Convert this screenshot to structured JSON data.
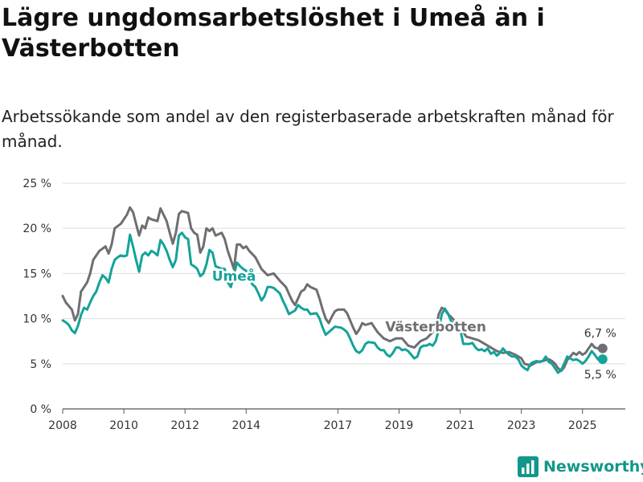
{
  "header": {
    "title": "Lägre ungdomsarbetslöshet i Umeå än i Västerbotten",
    "subtitle": "Arbetssökande som andel av den registerbaserade arbetskraften månad för månad."
  },
  "brand": {
    "name": "Newsworthy",
    "color": "#13978a"
  },
  "chart_data": {
    "type": "line",
    "title": "Lägre ungdomsarbetslöshet i Umeå än i Västerbotten",
    "subtitle": "Arbetssökande som andel av den registerbaserade arbetskraften månad för månad.",
    "xlabel": "",
    "ylabel": "",
    "xlim": [
      2008,
      2026.4
    ],
    "ylim": [
      0,
      25
    ],
    "grid": true,
    "yticks": [
      0,
      5,
      10,
      15,
      20,
      25
    ],
    "ytick_labels": [
      "0 %",
      "5 %",
      "10 %",
      "15 %",
      "20 %",
      "25 %"
    ],
    "xticks": [
      2008,
      2010,
      2012,
      2014,
      2017,
      2019,
      2021,
      2023,
      2025
    ],
    "xtick_labels": [
      "2008",
      "2010",
      "2012",
      "2014",
      "2017",
      "2019",
      "2021",
      "2023",
      "2025"
    ],
    "series": [
      {
        "name": "Västerbotten",
        "label": "Västerbotten",
        "color": "#6e6e73",
        "end_label": "6,7 %",
        "points": [
          [
            2008.0,
            12.5
          ],
          [
            2008.1,
            11.8
          ],
          [
            2008.3,
            11.0
          ],
          [
            2008.4,
            9.8
          ],
          [
            2008.5,
            10.5
          ],
          [
            2008.6,
            13.0
          ],
          [
            2008.8,
            14.0
          ],
          [
            2008.9,
            15.0
          ],
          [
            2009.0,
            16.5
          ],
          [
            2009.2,
            17.5
          ],
          [
            2009.4,
            18.0
          ],
          [
            2009.5,
            17.2
          ],
          [
            2009.6,
            18.2
          ],
          [
            2009.7,
            20.0
          ],
          [
            2009.9,
            20.5
          ],
          [
            2010.0,
            21.0
          ],
          [
            2010.1,
            21.5
          ],
          [
            2010.2,
            22.3
          ],
          [
            2010.3,
            21.8
          ],
          [
            2010.4,
            20.5
          ],
          [
            2010.5,
            19.2
          ],
          [
            2010.6,
            20.3
          ],
          [
            2010.7,
            20.0
          ],
          [
            2010.8,
            21.2
          ],
          [
            2010.9,
            21.0
          ],
          [
            2011.1,
            20.8
          ],
          [
            2011.2,
            22.2
          ],
          [
            2011.3,
            21.5
          ],
          [
            2011.4,
            20.8
          ],
          [
            2011.5,
            19.5
          ],
          [
            2011.6,
            18.3
          ],
          [
            2011.7,
            19.5
          ],
          [
            2011.8,
            21.6
          ],
          [
            2011.9,
            21.9
          ],
          [
            2012.1,
            21.7
          ],
          [
            2012.2,
            20.0
          ],
          [
            2012.3,
            19.5
          ],
          [
            2012.4,
            19.3
          ],
          [
            2012.5,
            17.3
          ],
          [
            2012.6,
            18.0
          ],
          [
            2012.7,
            20.0
          ],
          [
            2012.8,
            19.7
          ],
          [
            2012.9,
            20.0
          ],
          [
            2013.0,
            19.2
          ],
          [
            2013.2,
            19.5
          ],
          [
            2013.3,
            18.8
          ],
          [
            2013.4,
            17.5
          ],
          [
            2013.5,
            16.5
          ],
          [
            2013.6,
            15.5
          ],
          [
            2013.7,
            18.2
          ],
          [
            2013.8,
            18.2
          ],
          [
            2013.9,
            17.8
          ],
          [
            2014.0,
            18.0
          ],
          [
            2014.1,
            17.5
          ],
          [
            2014.3,
            16.8
          ],
          [
            2014.5,
            15.5
          ],
          [
            2014.7,
            14.8
          ],
          [
            2014.9,
            15.0
          ],
          [
            2015.1,
            14.2
          ],
          [
            2015.3,
            13.5
          ],
          [
            2015.5,
            12.0
          ],
          [
            2015.6,
            11.5
          ],
          [
            2015.8,
            13.0
          ],
          [
            2015.9,
            13.2
          ],
          [
            2016.0,
            13.8
          ],
          [
            2016.1,
            13.5
          ],
          [
            2016.3,
            13.2
          ],
          [
            2016.4,
            12.2
          ],
          [
            2016.5,
            11.0
          ],
          [
            2016.6,
            10.0
          ],
          [
            2016.7,
            9.5
          ],
          [
            2016.8,
            10.2
          ],
          [
            2016.9,
            10.8
          ],
          [
            2017.0,
            11.0
          ],
          [
            2017.2,
            11.0
          ],
          [
            2017.3,
            10.6
          ],
          [
            2017.4,
            9.8
          ],
          [
            2017.5,
            9.0
          ],
          [
            2017.6,
            8.3
          ],
          [
            2017.7,
            8.8
          ],
          [
            2017.8,
            9.5
          ],
          [
            2017.9,
            9.3
          ],
          [
            2018.1,
            9.5
          ],
          [
            2018.2,
            9.0
          ],
          [
            2018.3,
            8.5
          ],
          [
            2018.5,
            7.8
          ],
          [
            2018.7,
            7.5
          ],
          [
            2018.9,
            7.8
          ],
          [
            2019.1,
            7.8
          ],
          [
            2019.3,
            7.0
          ],
          [
            2019.5,
            6.8
          ],
          [
            2019.7,
            7.5
          ],
          [
            2019.9,
            7.8
          ],
          [
            2020.1,
            8.5
          ],
          [
            2020.2,
            8.8
          ],
          [
            2020.3,
            10.5
          ],
          [
            2020.4,
            11.2
          ],
          [
            2020.5,
            11.0
          ],
          [
            2020.6,
            10.5
          ],
          [
            2020.7,
            10.2
          ],
          [
            2020.8,
            9.8
          ],
          [
            2020.9,
            9.5
          ],
          [
            2021.0,
            9.0
          ],
          [
            2021.2,
            8.0
          ],
          [
            2021.4,
            7.8
          ],
          [
            2021.6,
            7.6
          ],
          [
            2021.8,
            7.2
          ],
          [
            2022.0,
            6.8
          ],
          [
            2022.2,
            6.4
          ],
          [
            2022.4,
            6.2
          ],
          [
            2022.6,
            6.3
          ],
          [
            2022.8,
            6.0
          ],
          [
            2023.0,
            5.6
          ],
          [
            2023.1,
            5.0
          ],
          [
            2023.3,
            4.8
          ],
          [
            2023.5,
            5.2
          ],
          [
            2023.7,
            5.3
          ],
          [
            2023.9,
            5.5
          ],
          [
            2024.0,
            5.3
          ],
          [
            2024.1,
            5.0
          ],
          [
            2024.2,
            4.5
          ],
          [
            2024.3,
            4.2
          ],
          [
            2024.4,
            4.6
          ],
          [
            2024.5,
            5.4
          ],
          [
            2024.6,
            5.8
          ],
          [
            2024.7,
            6.2
          ],
          [
            2024.8,
            6.0
          ],
          [
            2024.9,
            6.3
          ],
          [
            2025.0,
            6.0
          ],
          [
            2025.1,
            6.2
          ],
          [
            2025.2,
            6.7
          ],
          [
            2025.3,
            7.2
          ],
          [
            2025.4,
            6.8
          ],
          [
            2025.5,
            6.7
          ]
        ]
      },
      {
        "name": "Umeå",
        "label": "Umeå",
        "color": "#13a399",
        "end_label": "5,5 %",
        "points": [
          [
            2008.0,
            9.8
          ],
          [
            2008.1,
            9.6
          ],
          [
            2008.2,
            9.3
          ],
          [
            2008.3,
            8.7
          ],
          [
            2008.4,
            8.4
          ],
          [
            2008.5,
            9.2
          ],
          [
            2008.6,
            10.4
          ],
          [
            2008.7,
            11.2
          ],
          [
            2008.8,
            11.0
          ],
          [
            2008.9,
            11.8
          ],
          [
            2009.0,
            12.5
          ],
          [
            2009.1,
            13.0
          ],
          [
            2009.2,
            14.0
          ],
          [
            2009.3,
            14.8
          ],
          [
            2009.4,
            14.5
          ],
          [
            2009.5,
            14.0
          ],
          [
            2009.6,
            15.5
          ],
          [
            2009.7,
            16.5
          ],
          [
            2009.8,
            16.8
          ],
          [
            2009.9,
            17.0
          ],
          [
            2010.0,
            16.9
          ],
          [
            2010.1,
            17.0
          ],
          [
            2010.2,
            19.3
          ],
          [
            2010.3,
            18.0
          ],
          [
            2010.4,
            16.5
          ],
          [
            2010.5,
            15.2
          ],
          [
            2010.6,
            17.0
          ],
          [
            2010.7,
            17.3
          ],
          [
            2010.8,
            17.0
          ],
          [
            2010.9,
            17.5
          ],
          [
            2011.0,
            17.3
          ],
          [
            2011.1,
            17.0
          ],
          [
            2011.2,
            18.7
          ],
          [
            2011.3,
            18.2
          ],
          [
            2011.4,
            17.5
          ],
          [
            2011.5,
            16.5
          ],
          [
            2011.6,
            15.7
          ],
          [
            2011.7,
            16.5
          ],
          [
            2011.8,
            19.2
          ],
          [
            2011.9,
            19.5
          ],
          [
            2012.0,
            19.0
          ],
          [
            2012.1,
            18.8
          ],
          [
            2012.2,
            16.0
          ],
          [
            2012.3,
            15.8
          ],
          [
            2012.4,
            15.5
          ],
          [
            2012.5,
            14.7
          ],
          [
            2012.6,
            15.0
          ],
          [
            2012.7,
            16.0
          ],
          [
            2012.8,
            17.6
          ],
          [
            2012.9,
            17.3
          ],
          [
            2013.0,
            15.8
          ],
          [
            2013.2,
            15.5
          ],
          [
            2013.3,
            15.5
          ],
          [
            2013.4,
            14.0
          ],
          [
            2013.5,
            13.5
          ],
          [
            2013.6,
            14.8
          ],
          [
            2013.7,
            16.2
          ],
          [
            2013.8,
            15.8
          ],
          [
            2013.9,
            15.5
          ],
          [
            2014.0,
            15.3
          ],
          [
            2014.2,
            13.8
          ],
          [
            2014.3,
            13.5
          ],
          [
            2014.4,
            12.8
          ],
          [
            2014.5,
            12.0
          ],
          [
            2014.6,
            12.5
          ],
          [
            2014.7,
            13.5
          ],
          [
            2014.8,
            13.5
          ],
          [
            2014.9,
            13.4
          ],
          [
            2015.1,
            12.8
          ],
          [
            2015.2,
            12.0
          ],
          [
            2015.3,
            11.3
          ],
          [
            2015.4,
            10.5
          ],
          [
            2015.6,
            10.9
          ],
          [
            2015.7,
            11.5
          ],
          [
            2015.8,
            11.2
          ],
          [
            2015.9,
            11.0
          ],
          [
            2016.0,
            11.0
          ],
          [
            2016.1,
            10.5
          ],
          [
            2016.3,
            10.6
          ],
          [
            2016.4,
            10.0
          ],
          [
            2016.5,
            9.0
          ],
          [
            2016.6,
            8.2
          ],
          [
            2016.7,
            8.5
          ],
          [
            2016.8,
            8.8
          ],
          [
            2016.9,
            9.1
          ],
          [
            2017.1,
            9.0
          ],
          [
            2017.2,
            8.8
          ],
          [
            2017.3,
            8.5
          ],
          [
            2017.4,
            7.8
          ],
          [
            2017.5,
            7.0
          ],
          [
            2017.6,
            6.4
          ],
          [
            2017.7,
            6.2
          ],
          [
            2017.8,
            6.5
          ],
          [
            2017.9,
            7.2
          ],
          [
            2018.0,
            7.4
          ],
          [
            2018.2,
            7.3
          ],
          [
            2018.3,
            6.8
          ],
          [
            2018.4,
            6.5
          ],
          [
            2018.5,
            6.5
          ],
          [
            2018.6,
            6.0
          ],
          [
            2018.7,
            5.8
          ],
          [
            2018.8,
            6.2
          ],
          [
            2018.9,
            6.8
          ],
          [
            2019.0,
            6.8
          ],
          [
            2019.1,
            6.5
          ],
          [
            2019.2,
            6.6
          ],
          [
            2019.3,
            6.4
          ],
          [
            2019.4,
            6.0
          ],
          [
            2019.5,
            5.6
          ],
          [
            2019.6,
            5.8
          ],
          [
            2019.7,
            6.8
          ],
          [
            2019.8,
            7.0
          ],
          [
            2019.9,
            7.0
          ],
          [
            2020.0,
            7.2
          ],
          [
            2020.1,
            7.0
          ],
          [
            2020.2,
            7.5
          ],
          [
            2020.3,
            8.8
          ],
          [
            2020.4,
            10.5
          ],
          [
            2020.5,
            11.1
          ],
          [
            2020.6,
            10.6
          ],
          [
            2020.7,
            9.7
          ],
          [
            2020.8,
            9.5
          ],
          [
            2020.9,
            9.3
          ],
          [
            2021.0,
            8.8
          ],
          [
            2021.1,
            7.2
          ],
          [
            2021.3,
            7.2
          ],
          [
            2021.4,
            7.3
          ],
          [
            2021.5,
            6.8
          ],
          [
            2021.6,
            6.5
          ],
          [
            2021.7,
            6.6
          ],
          [
            2021.8,
            6.4
          ],
          [
            2021.9,
            6.7
          ],
          [
            2022.0,
            6.1
          ],
          [
            2022.1,
            6.3
          ],
          [
            2022.2,
            5.9
          ],
          [
            2022.3,
            6.2
          ],
          [
            2022.4,
            6.7
          ],
          [
            2022.5,
            6.3
          ],
          [
            2022.6,
            6.0
          ],
          [
            2022.7,
            5.8
          ],
          [
            2022.8,
            5.8
          ],
          [
            2022.9,
            5.5
          ],
          [
            2023.0,
            4.8
          ],
          [
            2023.1,
            4.5
          ],
          [
            2023.2,
            4.3
          ],
          [
            2023.3,
            5.0
          ],
          [
            2023.4,
            5.2
          ],
          [
            2023.5,
            5.3
          ],
          [
            2023.6,
            5.2
          ],
          [
            2023.7,
            5.3
          ],
          [
            2023.8,
            5.8
          ],
          [
            2023.9,
            5.2
          ],
          [
            2024.0,
            5.0
          ],
          [
            2024.1,
            4.5
          ],
          [
            2024.2,
            4.0
          ],
          [
            2024.3,
            4.3
          ],
          [
            2024.4,
            5.0
          ],
          [
            2024.5,
            5.8
          ],
          [
            2024.6,
            5.6
          ],
          [
            2024.7,
            5.4
          ],
          [
            2024.8,
            5.5
          ],
          [
            2024.9,
            5.3
          ],
          [
            2025.0,
            5.0
          ],
          [
            2025.1,
            5.3
          ],
          [
            2025.2,
            5.8
          ],
          [
            2025.3,
            6.4
          ],
          [
            2025.4,
            6.0
          ],
          [
            2025.5,
            5.5
          ]
        ]
      }
    ]
  }
}
